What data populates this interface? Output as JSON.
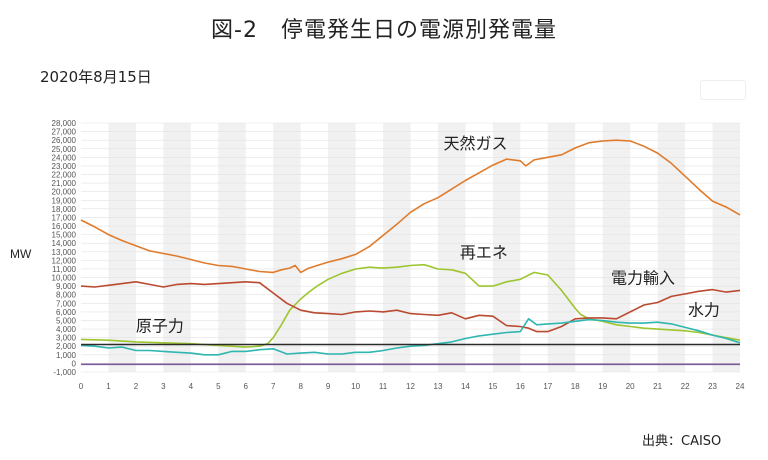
{
  "header": {
    "title": "図-2　停電発生日の電源別発電量",
    "date": "2020年8月15日",
    "source": "出典：CAISO"
  },
  "chart_data": {
    "type": "line",
    "title": "図-2　停電発生日の電源別発電量",
    "ylabel": "MW",
    "xlim": [
      0,
      24
    ],
    "ylim": [
      -1000,
      28000
    ],
    "x_ticks": [
      "0",
      "1",
      "2",
      "3",
      "4",
      "5",
      "6",
      "7",
      "8",
      "9",
      "10",
      "11",
      "12",
      "13",
      "14",
      "15",
      "16",
      "17",
      "18",
      "19",
      "20",
      "21",
      "22",
      "23",
      "24"
    ],
    "y_ticks": [
      -1000,
      0,
      1000,
      2000,
      3000,
      4000,
      5000,
      6000,
      7000,
      8000,
      9000,
      10000,
      11000,
      12000,
      13000,
      14000,
      15000,
      16000,
      17000,
      18000,
      19000,
      20000,
      21000,
      22000,
      23000,
      24000,
      25000,
      26000,
      27000,
      28000
    ],
    "grid": true,
    "series": [
      {
        "name": "天然ガス",
        "color": "#e07b2b",
        "label_at": [
          13.2,
          25000
        ],
        "x": [
          0,
          0.5,
          1,
          1.5,
          2,
          2.5,
          3,
          3.5,
          4,
          4.5,
          5,
          5.5,
          6,
          6.5,
          7,
          7.3,
          7.6,
          7.8,
          8,
          8.3,
          8.5,
          9,
          9.5,
          10,
          10.5,
          11,
          11.5,
          12,
          12.5,
          13,
          13.5,
          14,
          14.5,
          15,
          15.5,
          16,
          16.2,
          16.5,
          17,
          17.5,
          18,
          18.5,
          19,
          19.5,
          20,
          20.5,
          21,
          21.5,
          22,
          22.5,
          23,
          23.5,
          24
        ],
        "values": [
          16700,
          15900,
          15000,
          14300,
          13700,
          13100,
          12800,
          12500,
          12100,
          11700,
          11400,
          11300,
          11000,
          10700,
          10600,
          10900,
          11100,
          11400,
          10600,
          11100,
          11300,
          11800,
          12200,
          12700,
          13600,
          14900,
          16200,
          17600,
          18600,
          19300,
          20300,
          21300,
          22200,
          23100,
          23800,
          23600,
          23000,
          23700,
          24000,
          24300,
          25100,
          25700,
          25900,
          26000,
          25900,
          25300,
          24500,
          23300,
          21800,
          20300,
          18900,
          18200,
          17300
        ]
      },
      {
        "name": "再エネ",
        "color": "#9dc52f",
        "label_at": [
          13.8,
          12300
        ],
        "x": [
          0,
          1,
          2,
          3,
          4,
          5,
          6,
          6.5,
          6.8,
          7,
          7.3,
          7.6,
          8,
          8.3,
          8.6,
          9,
          9.5,
          10,
          10.5,
          11,
          11.5,
          12,
          12.5,
          13,
          13.5,
          14,
          14.5,
          15,
          15.5,
          16,
          16.5,
          17,
          17.5,
          18,
          18.2,
          18.5,
          19,
          19.5,
          20,
          20.5,
          21,
          21.5,
          22,
          22.5,
          23,
          23.5,
          24
        ],
        "values": [
          2800,
          2700,
          2500,
          2400,
          2300,
          2100,
          1900,
          2000,
          2300,
          3000,
          4500,
          6200,
          7500,
          8300,
          9000,
          9800,
          10500,
          11000,
          11200,
          11100,
          11200,
          11400,
          11500,
          11000,
          10900,
          10500,
          9000,
          9000,
          9500,
          9800,
          10600,
          10300,
          8500,
          6400,
          5700,
          5200,
          4900,
          4500,
          4300,
          4100,
          4000,
          3900,
          3800,
          3600,
          3300,
          3000,
          2700
        ]
      },
      {
        "name": "電力輸入",
        "color": "#b94a2f",
        "label_at": [
          19.3,
          9300
        ],
        "x": [
          0,
          0.5,
          1,
          1.5,
          2,
          2.5,
          3,
          3.5,
          4,
          4.5,
          5,
          5.5,
          6,
          6.5,
          7,
          7.5,
          8,
          8.5,
          9,
          9.5,
          10,
          10.5,
          11,
          11.5,
          12,
          12.5,
          13,
          13.5,
          14,
          14.5,
          15,
          15.5,
          16,
          16.3,
          16.6,
          17,
          17.5,
          18,
          18.5,
          19,
          19.5,
          20,
          20.5,
          21,
          21.5,
          22,
          22.5,
          23,
          23.5,
          24
        ],
        "values": [
          9000,
          8900,
          9100,
          9300,
          9500,
          9200,
          8900,
          9200,
          9300,
          9200,
          9300,
          9400,
          9500,
          9400,
          8200,
          7000,
          6200,
          5900,
          5800,
          5700,
          6000,
          6100,
          6000,
          6200,
          5800,
          5700,
          5600,
          5900,
          5200,
          5600,
          5500,
          4400,
          4300,
          4100,
          3700,
          3700,
          4300,
          5200,
          5300,
          5300,
          5200,
          6000,
          6800,
          7100,
          7800,
          8100,
          8400,
          8600,
          8300,
          8500
        ]
      },
      {
        "name": "水力",
        "color": "#2eb6b0",
        "label_at": [
          22.1,
          5600
        ],
        "x": [
          0,
          0.5,
          1,
          1.5,
          2,
          2.5,
          3,
          3.5,
          4,
          4.5,
          5,
          5.5,
          6,
          6.5,
          7,
          7.5,
          8,
          8.5,
          9,
          9.5,
          10,
          10.5,
          11,
          11.5,
          12,
          12.5,
          13,
          13.5,
          14,
          14.5,
          15,
          15.5,
          16,
          16.3,
          16.6,
          17,
          17.5,
          18,
          18.5,
          19,
          19.5,
          20,
          20.5,
          21,
          21.5,
          22,
          22.5,
          23,
          23.5,
          24
        ],
        "values": [
          2100,
          2000,
          1800,
          1900,
          1500,
          1500,
          1400,
          1300,
          1200,
          1000,
          1000,
          1400,
          1400,
          1600,
          1700,
          1100,
          1200,
          1300,
          1100,
          1100,
          1300,
          1300,
          1500,
          1800,
          2000,
          2100,
          2300,
          2500,
          2900,
          3200,
          3400,
          3600,
          3700,
          5200,
          4500,
          4600,
          4700,
          4900,
          5100,
          5000,
          4800,
          4700,
          4700,
          4800,
          4600,
          4200,
          3800,
          3300,
          2900,
          2400
        ]
      },
      {
        "name": "原子力",
        "color": "#2a2a2a",
        "label_at": [
          2.0,
          3700
        ],
        "x": [
          0,
          24
        ],
        "values": [
          2200,
          2200
        ]
      },
      {
        "name": "",
        "color": "#7a5a9b",
        "x": [
          0,
          24
        ],
        "values": [
          -100,
          -100
        ]
      }
    ]
  }
}
